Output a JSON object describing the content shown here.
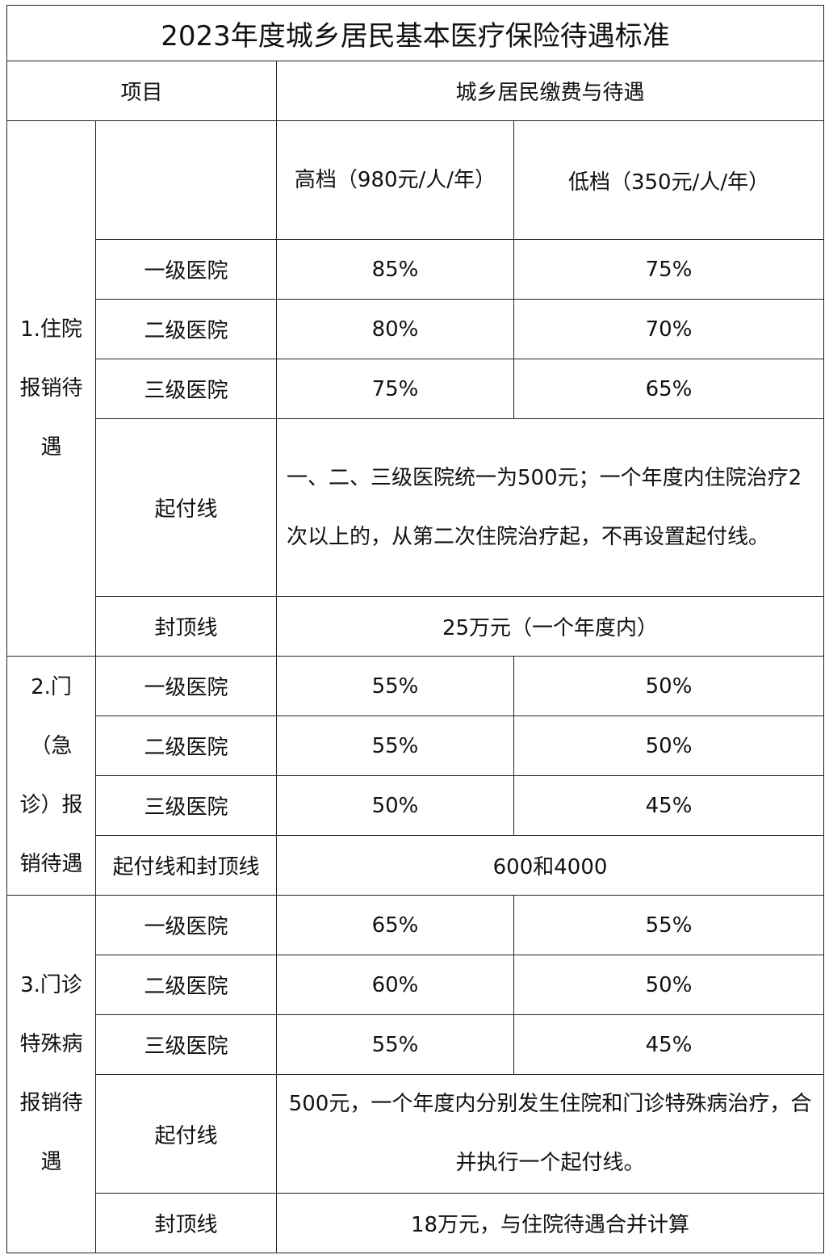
{
  "title": "2023年度城乡居民基本医疗保险待遇标准",
  "header": {
    "item": "项目",
    "payment": "城乡居民缴费与待遇"
  },
  "tiers": {
    "high": "高档（980元/人/年）",
    "low": "低档（350元/人/年）"
  },
  "hospitalization": {
    "label": "1.住院报销待遇",
    "rows": [
      {
        "level": "一级医院",
        "high": "85%",
        "low": "75%"
      },
      {
        "level": "二级医院",
        "high": "80%",
        "low": "70%"
      },
      {
        "level": "三级医院",
        "high": "75%",
        "low": "65%"
      }
    ],
    "deductible_label": "起付线",
    "deductible": "一、二、三级医院统一为500元；一个年度内住院治疗2次以上的，从第二次住院治疗起，不再设置起付线。",
    "cap_label": "封顶线",
    "cap": "25万元（一个年度内）"
  },
  "outpatient": {
    "label": "2.门（急诊）报销待遇",
    "rows": [
      {
        "level": "一级医院",
        "high": "55%",
        "low": "50%"
      },
      {
        "level": "二级医院",
        "high": "55%",
        "low": "50%"
      },
      {
        "level": "三级医院",
        "high": "50%",
        "low": "45%"
      }
    ],
    "deductible_cap_label": "起付线和封顶线",
    "deductible_cap": "600和4000"
  },
  "special": {
    "label": "3.门诊特殊病报销待遇",
    "rows": [
      {
        "level": "一级医院",
        "high": "65%",
        "low": "55%"
      },
      {
        "level": "二级医院",
        "high": "60%",
        "low": "50%"
      },
      {
        "level": "三级医院",
        "high": "55%",
        "low": "45%"
      }
    ],
    "deductible_label": "起付线",
    "deductible": "500元，一个年度内分别发生住院和门诊特殊病治疗，合并执行一个起付线。",
    "cap_label": "封顶线",
    "cap": "18万元，与住院待遇合并计算"
  }
}
